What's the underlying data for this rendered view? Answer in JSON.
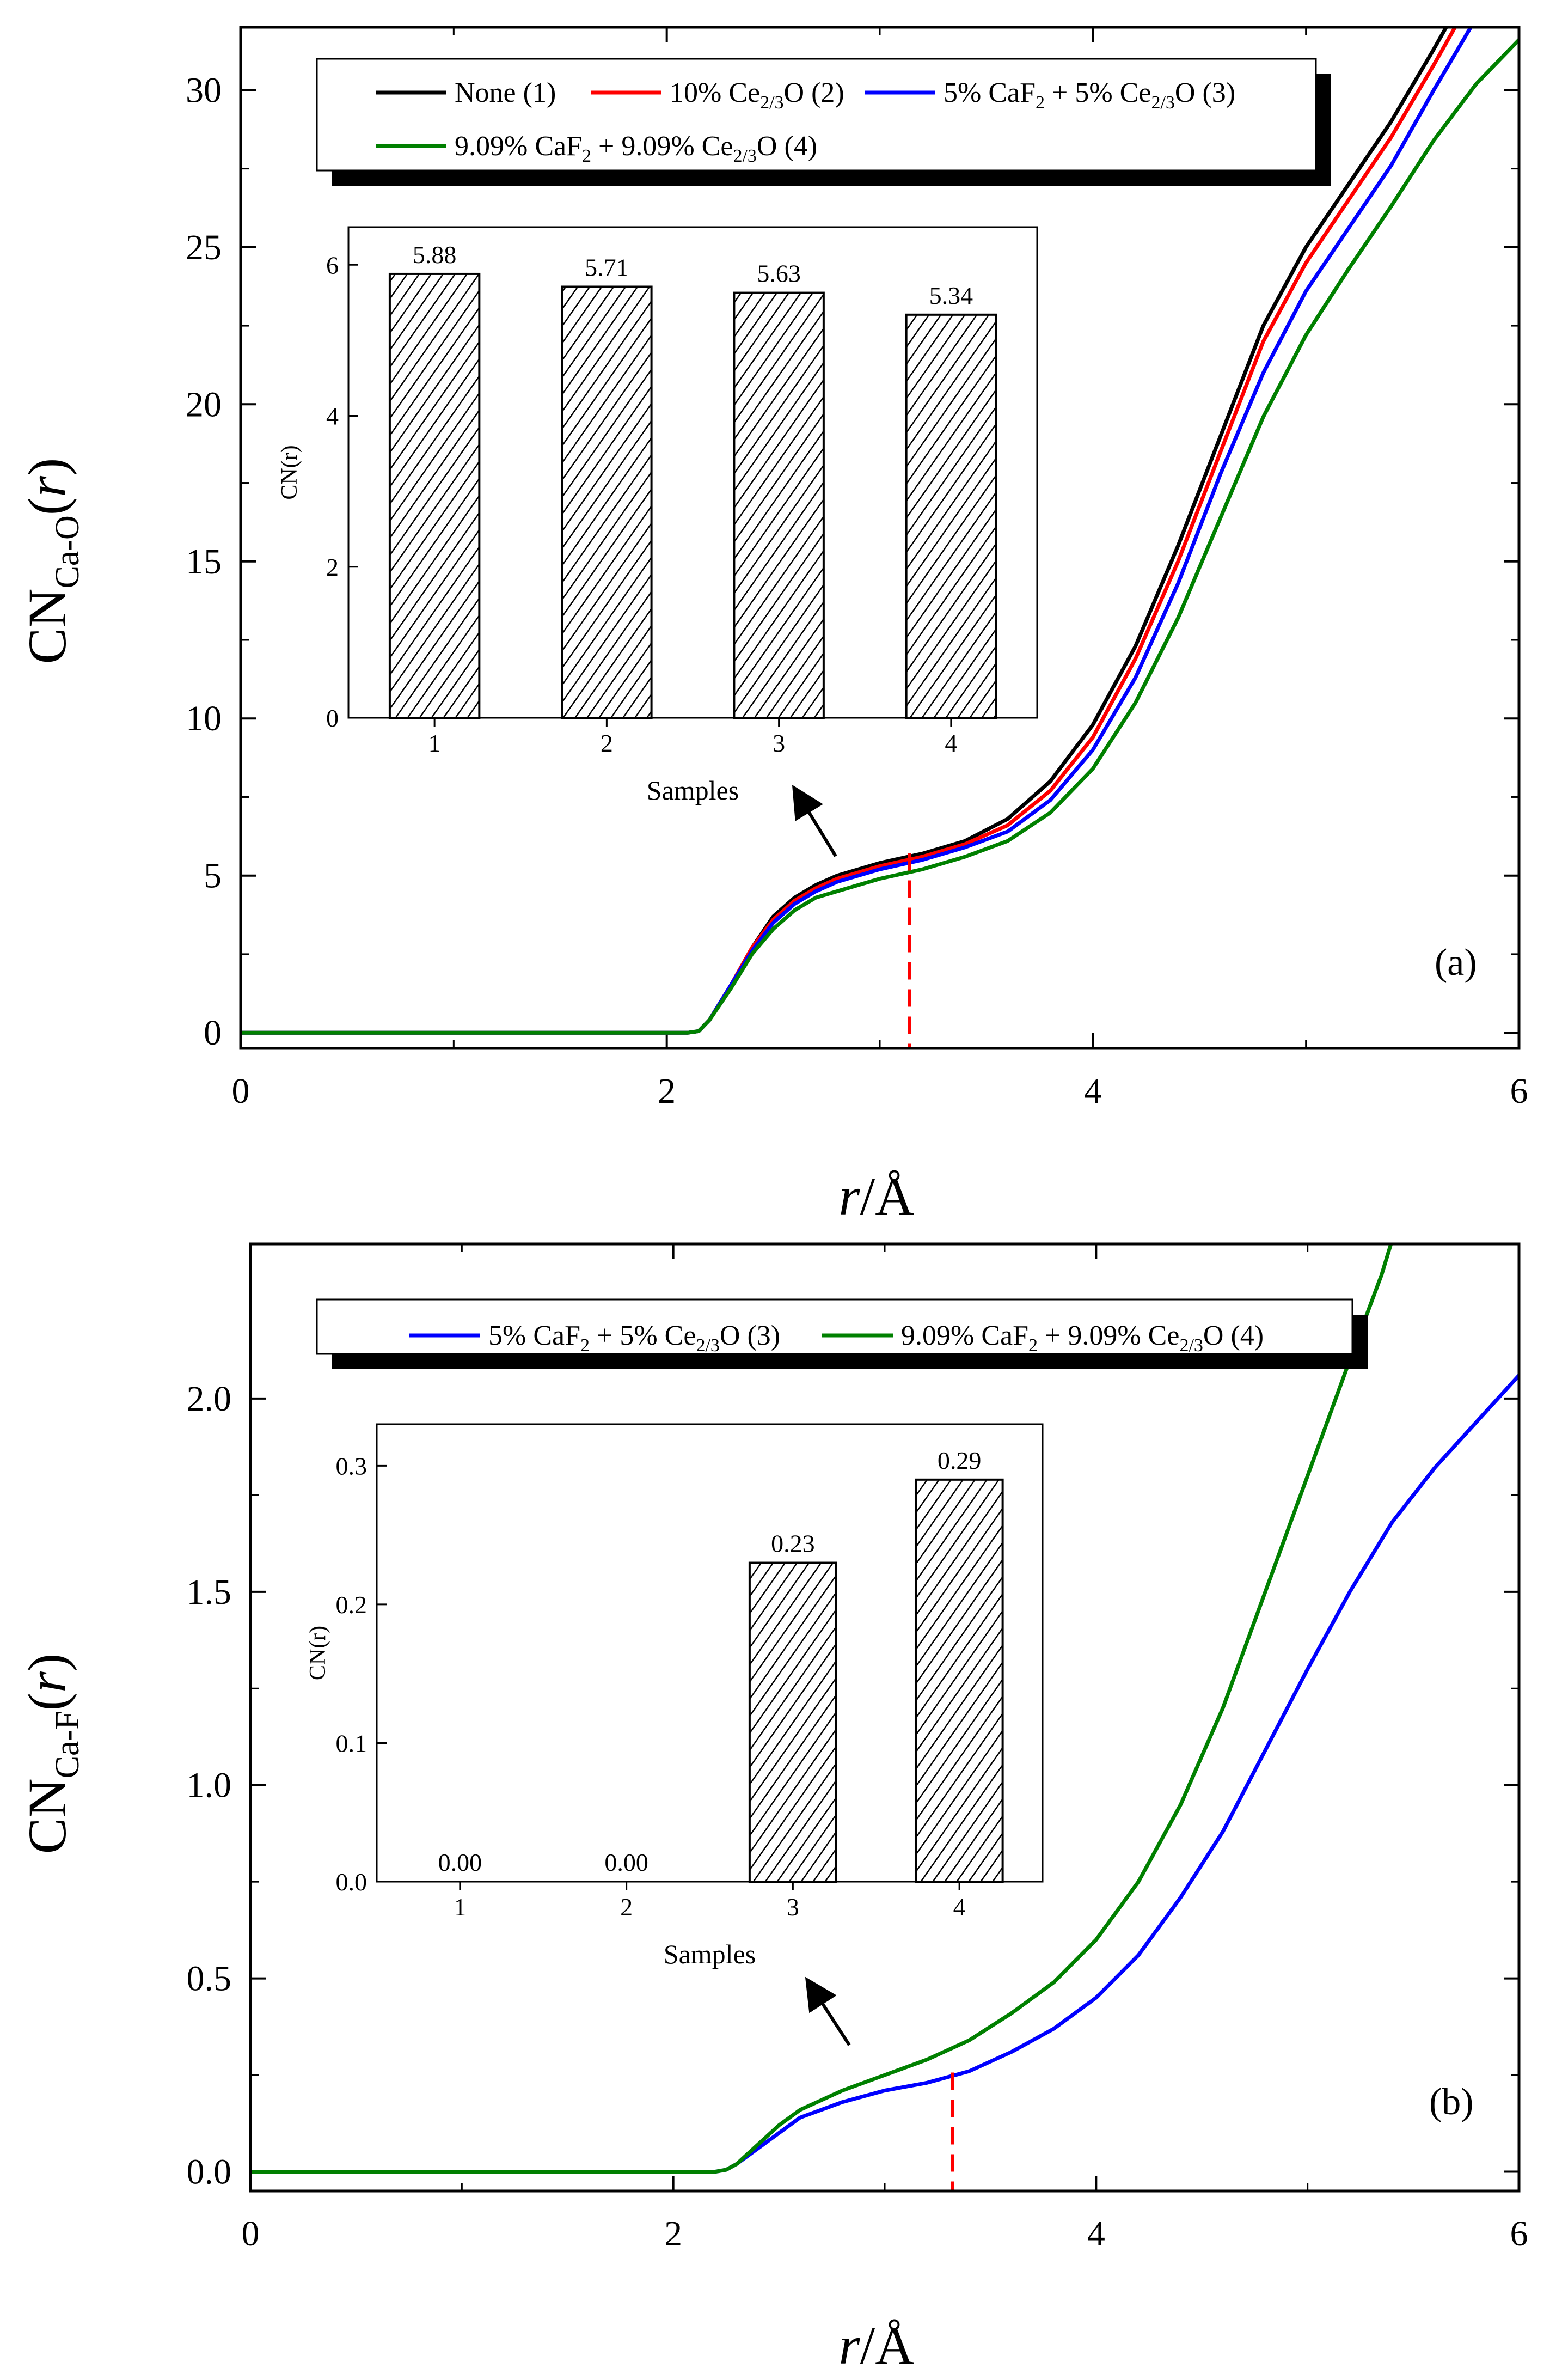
{
  "chart_data": [
    {
      "type": "line",
      "panel_label": "(a)",
      "ylabel": {
        "main": "CN",
        "sub": "Ca-O",
        "tail": "(",
        "var": "r",
        "close": ")"
      },
      "xlabel": {
        "var": "r",
        "tail": "/Å"
      },
      "xlim": [
        0,
        6
      ],
      "ylim": [
        -0.5,
        32
      ],
      "xticks": [
        "0",
        "2",
        "4",
        "6"
      ],
      "yticks": [
        "0",
        "5",
        "10",
        "15",
        "20",
        "25",
        "30"
      ],
      "legend": [
        {
          "label": "None (1)",
          "color": "#000000"
        },
        {
          "label": "10% Ce2/3O (2)",
          "color": "#ff0000"
        },
        {
          "label": "5% CaF2 + 5% Ce2/3O (3)",
          "color": "#0000ff"
        },
        {
          "label": "9.09% CaF2 + 9.09% Ce2/3O (4)",
          "color": "#008000"
        }
      ],
      "series": [
        {
          "name": "None (1)",
          "color": "#000000",
          "points": [
            [
              0,
              0
            ],
            [
              2.1,
              0
            ],
            [
              2.15,
              0.05
            ],
            [
              2.2,
              0.4
            ],
            [
              2.3,
              1.5
            ],
            [
              2.4,
              2.7
            ],
            [
              2.5,
              3.7
            ],
            [
              2.6,
              4.3
            ],
            [
              2.7,
              4.7
            ],
            [
              2.8,
              5.0
            ],
            [
              3.0,
              5.4
            ],
            [
              3.2,
              5.7
            ],
            [
              3.4,
              6.1
            ],
            [
              3.6,
              6.8
            ],
            [
              3.8,
              8.0
            ],
            [
              4.0,
              9.8
            ],
            [
              4.2,
              12.3
            ],
            [
              4.4,
              15.5
            ],
            [
              4.6,
              19.0
            ],
            [
              4.8,
              22.5
            ],
            [
              5.0,
              25.0
            ],
            [
              5.2,
              27.0
            ],
            [
              5.4,
              29.0
            ],
            [
              5.6,
              31.3
            ],
            [
              5.7,
              32.5
            ]
          ]
        },
        {
          "name": "10% Ce2/3O (2)",
          "color": "#ff0000",
          "points": [
            [
              0,
              0
            ],
            [
              2.1,
              0
            ],
            [
              2.15,
              0.05
            ],
            [
              2.2,
              0.4
            ],
            [
              2.3,
              1.5
            ],
            [
              2.4,
              2.7
            ],
            [
              2.5,
              3.6
            ],
            [
              2.6,
              4.2
            ],
            [
              2.7,
              4.6
            ],
            [
              2.8,
              4.9
            ],
            [
              3.0,
              5.3
            ],
            [
              3.2,
              5.6
            ],
            [
              3.4,
              6.0
            ],
            [
              3.6,
              6.6
            ],
            [
              3.8,
              7.7
            ],
            [
              4.0,
              9.4
            ],
            [
              4.2,
              11.9
            ],
            [
              4.4,
              15.0
            ],
            [
              4.6,
              18.5
            ],
            [
              4.8,
              22.0
            ],
            [
              5.0,
              24.5
            ],
            [
              5.2,
              26.5
            ],
            [
              5.4,
              28.5
            ],
            [
              5.6,
              30.8
            ],
            [
              5.7,
              32.0
            ]
          ]
        },
        {
          "name": "5% CaF2 + 5% Ce2/3O (3)",
          "color": "#0000ff",
          "points": [
            [
              0,
              0
            ],
            [
              2.1,
              0
            ],
            [
              2.15,
              0.05
            ],
            [
              2.2,
              0.4
            ],
            [
              2.3,
              1.5
            ],
            [
              2.4,
              2.6
            ],
            [
              2.5,
              3.5
            ],
            [
              2.6,
              4.1
            ],
            [
              2.7,
              4.5
            ],
            [
              2.8,
              4.8
            ],
            [
              3.0,
              5.2
            ],
            [
              3.2,
              5.5
            ],
            [
              3.4,
              5.9
            ],
            [
              3.6,
              6.4
            ],
            [
              3.8,
              7.4
            ],
            [
              4.0,
              9.0
            ],
            [
              4.2,
              11.3
            ],
            [
              4.4,
              14.3
            ],
            [
              4.6,
              17.8
            ],
            [
              4.8,
              21.0
            ],
            [
              5.0,
              23.6
            ],
            [
              5.2,
              25.6
            ],
            [
              5.4,
              27.6
            ],
            [
              5.6,
              30.0
            ],
            [
              5.8,
              32.3
            ]
          ]
        },
        {
          "name": "9.09% CaF2 + 9.09% Ce2/3O (4)",
          "color": "#008000",
          "points": [
            [
              0,
              0
            ],
            [
              2.1,
              0
            ],
            [
              2.15,
              0.05
            ],
            [
              2.2,
              0.4
            ],
            [
              2.3,
              1.4
            ],
            [
              2.4,
              2.5
            ],
            [
              2.5,
              3.3
            ],
            [
              2.6,
              3.9
            ],
            [
              2.7,
              4.3
            ],
            [
              2.8,
              4.5
            ],
            [
              3.0,
              4.9
            ],
            [
              3.2,
              5.2
            ],
            [
              3.4,
              5.6
            ],
            [
              3.6,
              6.1
            ],
            [
              3.8,
              7.0
            ],
            [
              4.0,
              8.4
            ],
            [
              4.2,
              10.5
            ],
            [
              4.4,
              13.2
            ],
            [
              4.6,
              16.4
            ],
            [
              4.8,
              19.6
            ],
            [
              5.0,
              22.2
            ],
            [
              5.2,
              24.3
            ],
            [
              5.4,
              26.3
            ],
            [
              5.6,
              28.4
            ],
            [
              5.8,
              30.2
            ],
            [
              6.0,
              31.6
            ]
          ]
        }
      ],
      "marker_x": 3.14,
      "inset": {
        "type": "bar",
        "xlabel": "Samples",
        "ylabel": "CN(r)",
        "ylim": [
          0,
          6.5
        ],
        "yticks": [
          "0",
          "2",
          "4",
          "6"
        ],
        "categories": [
          "1",
          "2",
          "3",
          "4"
        ],
        "values": [
          5.88,
          5.71,
          5.63,
          5.34
        ],
        "labels": [
          "5.88",
          "5.71",
          "5.63",
          "5.34"
        ]
      }
    },
    {
      "type": "line",
      "panel_label": "(b)",
      "ylabel": {
        "main": "CN",
        "sub": "Ca-F",
        "tail": "(",
        "var": "r",
        "close": ")"
      },
      "xlabel": {
        "var": "r",
        "tail": "/Å"
      },
      "xlim": [
        0,
        6
      ],
      "ylim": [
        -0.05,
        2.4
      ],
      "xticks": [
        "0",
        "2",
        "4",
        "6"
      ],
      "yticks": [
        "0.0",
        "0.5",
        "1.0",
        "1.5",
        "2.0"
      ],
      "legend": [
        {
          "label": "5% CaF2 + 5% Ce2/3O (3)",
          "color": "#0000ff"
        },
        {
          "label": "9.09% CaF2 + 9.09% Ce2/3O (4)",
          "color": "#008000"
        }
      ],
      "series": [
        {
          "name": "5% CaF2 + 5% Ce2/3O (3)",
          "color": "#0000ff",
          "points": [
            [
              0,
              0
            ],
            [
              2.2,
              0
            ],
            [
              2.25,
              0.005
            ],
            [
              2.3,
              0.02
            ],
            [
              2.4,
              0.06
            ],
            [
              2.5,
              0.1
            ],
            [
              2.6,
              0.14
            ],
            [
              2.8,
              0.18
            ],
            [
              3.0,
              0.21
            ],
            [
              3.2,
              0.23
            ],
            [
              3.4,
              0.26
            ],
            [
              3.6,
              0.31
            ],
            [
              3.8,
              0.37
            ],
            [
              4.0,
              0.45
            ],
            [
              4.2,
              0.56
            ],
            [
              4.4,
              0.71
            ],
            [
              4.6,
              0.88
            ],
            [
              4.8,
              1.09
            ],
            [
              5.0,
              1.3
            ],
            [
              5.2,
              1.5
            ],
            [
              5.4,
              1.68
            ],
            [
              5.6,
              1.82
            ],
            [
              5.8,
              1.94
            ],
            [
              6.0,
              2.06
            ]
          ]
        },
        {
          "name": "9.09% CaF2 + 9.09% Ce2/3O (4)",
          "color": "#008000",
          "points": [
            [
              0,
              0
            ],
            [
              2.2,
              0
            ],
            [
              2.25,
              0.005
            ],
            [
              2.3,
              0.02
            ],
            [
              2.4,
              0.07
            ],
            [
              2.5,
              0.12
            ],
            [
              2.6,
              0.16
            ],
            [
              2.8,
              0.21
            ],
            [
              3.0,
              0.25
            ],
            [
              3.2,
              0.29
            ],
            [
              3.4,
              0.34
            ],
            [
              3.6,
              0.41
            ],
            [
              3.8,
              0.49
            ],
            [
              4.0,
              0.6
            ],
            [
              4.2,
              0.75
            ],
            [
              4.4,
              0.95
            ],
            [
              4.6,
              1.2
            ],
            [
              4.8,
              1.5
            ],
            [
              5.0,
              1.8
            ],
            [
              5.2,
              2.1
            ],
            [
              5.35,
              2.32
            ],
            [
              5.45,
              2.5
            ]
          ]
        }
      ],
      "marker_x": 3.32,
      "inset": {
        "type": "bar",
        "xlabel": "Samples",
        "ylabel": "CN(r)",
        "ylim": [
          0,
          0.33
        ],
        "yticks": [
          "0.0",
          "0.1",
          "0.2",
          "0.3"
        ],
        "categories": [
          "1",
          "2",
          "3",
          "4"
        ],
        "values": [
          0.0,
          0.0,
          0.23,
          0.29
        ],
        "labels": [
          "0.00",
          "0.00",
          "0.23",
          "0.29"
        ]
      }
    }
  ]
}
